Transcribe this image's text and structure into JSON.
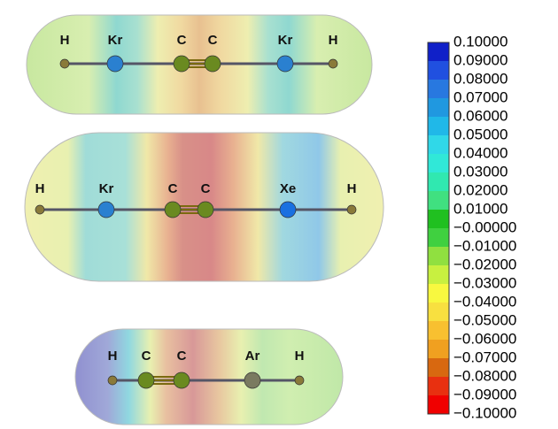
{
  "molecules": [
    {
      "atoms": [
        "H",
        "Kr",
        "C",
        "C",
        "Kr",
        "H"
      ]
    },
    {
      "atoms": [
        "H",
        "Kr",
        "C",
        "C",
        "Xe",
        "H"
      ]
    },
    {
      "atoms": [
        "H",
        "C",
        "C",
        "Ar",
        "H"
      ]
    }
  ],
  "color_scale": {
    "labels": [
      "0.10000",
      "0.09000",
      "0.08000",
      "0.07000",
      "0.06000",
      "0.05000",
      "0.04000",
      "0.03000",
      "0.02000",
      "0.01000",
      "−0.00000",
      "−0.01000",
      "−0.02000",
      "−0.03000",
      "−0.04000",
      "−0.05000",
      "−0.06000",
      "−0.07000",
      "−0.08000",
      "−0.09000",
      "−0.10000"
    ]
  }
}
